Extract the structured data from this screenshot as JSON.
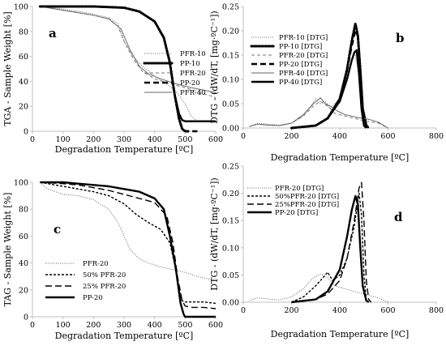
{
  "chart_data": [
    {
      "panel": "a",
      "type": "line",
      "xlabel": "Degradation Temperature [ºC]",
      "ylabel": "TGA - Sample Weight [%]",
      "xlim": [
        0,
        600
      ],
      "ylim": [
        0,
        100
      ],
      "xticks": [
        0,
        100,
        200,
        300,
        400,
        500,
        600
      ],
      "yticks": [
        0,
        20,
        40,
        60,
        80,
        100
      ],
      "legend_position": "right-middle",
      "series": [
        {
          "name": "PFR-10",
          "style": "dotted-thin",
          "x": [
            25,
            100,
            150,
            200,
            250,
            280,
            300,
            330,
            360,
            400,
            440,
            470,
            500,
            520,
            540,
            560,
            600
          ],
          "y": [
            100,
            98,
            96,
            94,
            91,
            86,
            72,
            60,
            52,
            44,
            38,
            32,
            22,
            12,
            8,
            8,
            8
          ]
        },
        {
          "name": "PP-10",
          "style": "dotted-thick",
          "x": [
            25,
            200,
            300,
            350,
            400,
            430,
            450,
            465,
            480,
            490,
            500,
            510
          ],
          "y": [
            100,
            100,
            99,
            96,
            88,
            75,
            55,
            30,
            10,
            2,
            0,
            0
          ]
        },
        {
          "name": "PFR-20",
          "style": "dashed-thin",
          "x": [
            25,
            100,
            150,
            200,
            250,
            280,
            300,
            330,
            360,
            400,
            450,
            500,
            550,
            600
          ],
          "y": [
            100,
            97,
            95,
            93,
            90,
            84,
            72,
            58,
            48,
            42,
            38,
            35,
            31,
            27
          ]
        },
        {
          "name": "PP-20",
          "style": "dashed-thick",
          "x": [
            25,
            200,
            300,
            350,
            400,
            430,
            450,
            465,
            480,
            490,
            500,
            520,
            540
          ],
          "y": [
            100,
            100,
            99,
            96,
            88,
            75,
            55,
            30,
            10,
            2,
            0,
            0,
            0
          ]
        },
        {
          "name": "PFR-40",
          "style": "solid-thin",
          "x": [
            25,
            100,
            150,
            200,
            250,
            290,
            320,
            350,
            380,
            420,
            470,
            520,
            560,
            600
          ],
          "y": [
            100,
            97,
            95,
            93,
            90,
            82,
            65,
            52,
            46,
            42,
            38,
            35,
            33,
            31
          ]
        },
        {
          "name": "",
          "style": "solid-thick",
          "x": [
            25,
            200,
            300,
            350,
            400,
            430,
            450,
            465,
            480,
            490,
            500,
            520,
            560,
            600
          ],
          "y": [
            100,
            100,
            99,
            96,
            88,
            75,
            55,
            30,
            14,
            9,
            8,
            8,
            8,
            8
          ]
        }
      ]
    },
    {
      "panel": "b",
      "type": "line",
      "xlabel": "Degradation Temperature [ºC]",
      "ylabel": "DTG - (dW/dT, [mg·ºC⁻¹])",
      "xlim": [
        0,
        800
      ],
      "ylim": [
        0,
        0.25
      ],
      "xticks": [
        0,
        200,
        400,
        600,
        800
      ],
      "yticks": [
        "0.00",
        "0.05",
        "0.10",
        "0.15",
        "0.20",
        "0.25"
      ],
      "legend_position": "top-left",
      "series": [
        {
          "name": "PFR-10 [DTG]",
          "style": "dotted-thin",
          "x": [
            25,
            60,
            100,
            150,
            200,
            250,
            280,
            300,
            320,
            340,
            360,
            400,
            430,
            460,
            480,
            500,
            520
          ],
          "y": [
            0.003,
            0.01,
            0.008,
            0.006,
            0.01,
            0.025,
            0.045,
            0.06,
            0.05,
            0.055,
            0.04,
            0.06,
            0.1,
            0.16,
            0.11,
            0.02,
            0.0
          ]
        },
        {
          "name": "PP-10 [DTG]",
          "style": "dotted-thick",
          "x": [
            200,
            300,
            350,
            400,
            430,
            450,
            465,
            475,
            485,
            495,
            510,
            520
          ],
          "y": [
            0.0,
            0.005,
            0.02,
            0.06,
            0.12,
            0.18,
            0.215,
            0.19,
            0.12,
            0.04,
            0.005,
            0.0
          ]
        },
        {
          "name": "PFR-20 [DTG]",
          "style": "dashed-thin",
          "x": [
            25,
            60,
            100,
            150,
            200,
            250,
            290,
            320,
            350,
            380,
            420,
            460,
            500,
            560,
            600
          ],
          "y": [
            0.003,
            0.008,
            0.006,
            0.005,
            0.01,
            0.025,
            0.045,
            0.055,
            0.045,
            0.03,
            0.025,
            0.02,
            0.015,
            0.01,
            0.0
          ]
        },
        {
          "name": "PP-20 [DTG]",
          "style": "dashed-thick",
          "x": [
            200,
            300,
            350,
            400,
            430,
            450,
            465,
            475,
            485,
            495,
            510,
            520
          ],
          "y": [
            0.0,
            0.005,
            0.02,
            0.06,
            0.12,
            0.17,
            0.2,
            0.19,
            0.12,
            0.04,
            0.005,
            0.0
          ]
        },
        {
          "name": "PFR-40 [DTG]",
          "style": "solid-thin",
          "x": [
            25,
            60,
            100,
            150,
            200,
            250,
            290,
            320,
            340,
            360,
            390,
            420,
            470,
            520,
            560,
            600
          ],
          "y": [
            0.003,
            0.008,
            0.006,
            0.005,
            0.01,
            0.028,
            0.05,
            0.062,
            0.05,
            0.045,
            0.035,
            0.028,
            0.022,
            0.018,
            0.012,
            0.0
          ]
        },
        {
          "name": "PP-40 [DTG]",
          "style": "solid-thick",
          "x": [
            200,
            300,
            350,
            400,
            430,
            450,
            460,
            470,
            480,
            490,
            500,
            510
          ],
          "y": [
            0.0,
            0.005,
            0.02,
            0.055,
            0.1,
            0.14,
            0.155,
            0.16,
            0.11,
            0.04,
            0.005,
            0.0
          ]
        }
      ]
    },
    {
      "panel": "c",
      "type": "line",
      "xlabel": "Degradation Temperature [ºC]",
      "ylabel": "TAG - Sample Weight [%]",
      "xlim": [
        0,
        600
      ],
      "ylim": [
        0,
        100
      ],
      "xticks": [
        0,
        100,
        200,
        300,
        400,
        500,
        600
      ],
      "yticks": [
        0,
        20,
        40,
        60,
        80,
        100
      ],
      "legend_position": "bottom-right",
      "series": [
        {
          "name": "PFR-20",
          "style": "dotted-thin",
          "x": [
            25,
            50,
            100,
            150,
            200,
            250,
            280,
            300,
            320,
            350,
            380,
            420,
            460,
            500,
            540,
            600
          ],
          "y": [
            100,
            95,
            91,
            90,
            87,
            80,
            70,
            60,
            50,
            43,
            40,
            37,
            35,
            33,
            30,
            27
          ]
        },
        {
          "name": "50% PFR-20",
          "style": "dashed-small",
          "x": [
            25,
            100,
            150,
            200,
            250,
            300,
            340,
            380,
            420,
            450,
            470,
            480,
            490,
            500,
            520,
            560,
            600
          ],
          "y": [
            100,
            97,
            95,
            93,
            90,
            84,
            76,
            70,
            65,
            55,
            35,
            20,
            12,
            11,
            11,
            11,
            10
          ]
        },
        {
          "name": "25% PFR-20",
          "style": "dashed-large",
          "x": [
            25,
            100,
            150,
            200,
            250,
            300,
            350,
            400,
            440,
            460,
            475,
            490,
            500,
            520,
            560,
            600
          ],
          "y": [
            100,
            99,
            98,
            96,
            94,
            91,
            88,
            85,
            75,
            55,
            30,
            12,
            8,
            7,
            7,
            6
          ]
        },
        {
          "name": "PP-20",
          "style": "solid-thick",
          "x": [
            25,
            100,
            150,
            200,
            250,
            300,
            350,
            400,
            430,
            450,
            470,
            485,
            495,
            500,
            520,
            560,
            600
          ],
          "y": [
            100,
            100,
            99,
            98,
            97,
            95,
            93,
            88,
            80,
            60,
            35,
            10,
            2,
            0,
            0,
            0,
            0
          ]
        }
      ]
    },
    {
      "panel": "d",
      "type": "line",
      "xlabel": "Degradation Temperature [ºC]",
      "ylabel": "DTG - (dW/dT, [mg·ºC⁻¹])",
      "xlim": [
        0,
        800
      ],
      "ylim": [
        0,
        0.25
      ],
      "xticks": [
        0,
        200,
        400,
        600,
        800
      ],
      "yticks": [
        "0.00",
        "0.05",
        "0.10",
        "0.15",
        "0.20",
        "0.25"
      ],
      "legend_position": "top-left",
      "series": [
        {
          "name": "PFR-20 [DTG]",
          "style": "dotted-thin",
          "x": [
            25,
            60,
            100,
            150,
            200,
            250,
            290,
            320,
            350,
            380,
            420,
            460,
            500,
            560,
            600
          ],
          "y": [
            0.003,
            0.008,
            0.006,
            0.004,
            0.01,
            0.025,
            0.045,
            0.052,
            0.045,
            0.03,
            0.025,
            0.02,
            0.015,
            0.008,
            0.0
          ]
        },
        {
          "name": "50%PFR-20 [DTG]",
          "style": "dashed-small",
          "x": [
            200,
            250,
            300,
            330,
            350,
            370,
            400,
            430,
            460,
            480,
            490,
            500,
            510,
            520
          ],
          "y": [
            0.0,
            0.01,
            0.03,
            0.045,
            0.055,
            0.04,
            0.05,
            0.08,
            0.14,
            0.2,
            0.16,
            0.05,
            0.005,
            0.0
          ]
        },
        {
          "name": "25%PFR-20 [DTG]",
          "style": "dashed-large",
          "x": [
            200,
            300,
            350,
            400,
            430,
            460,
            480,
            490,
            500,
            510,
            520,
            530
          ],
          "y": [
            0.0,
            0.005,
            0.015,
            0.04,
            0.08,
            0.15,
            0.21,
            0.22,
            0.15,
            0.04,
            0.005,
            0.0
          ]
        },
        {
          "name": "PP-20 [DTG]",
          "style": "solid-thick",
          "x": [
            200,
            300,
            350,
            400,
            430,
            450,
            465,
            475,
            485,
            495,
            510,
            520
          ],
          "y": [
            0.0,
            0.005,
            0.02,
            0.06,
            0.12,
            0.17,
            0.195,
            0.18,
            0.1,
            0.03,
            0.003,
            0.0
          ]
        }
      ]
    }
  ]
}
